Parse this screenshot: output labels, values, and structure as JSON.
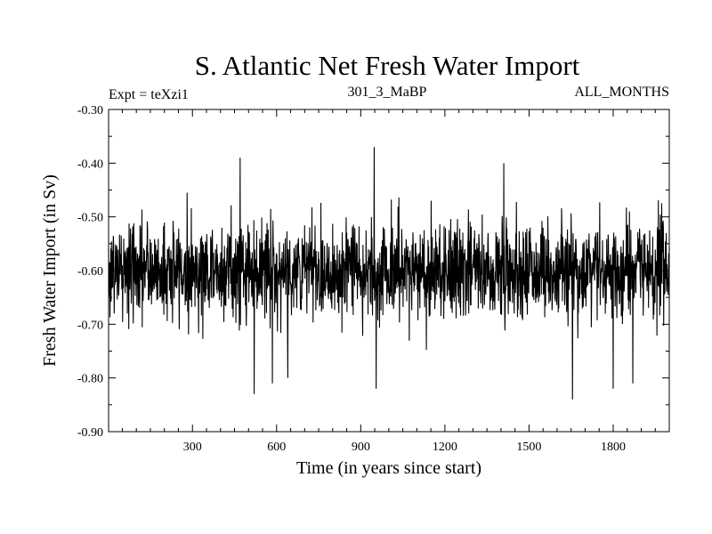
{
  "chart_data": {
    "type": "line",
    "title": "S. Atlantic Net Fresh Water Import",
    "subtitle_left": "Expt = teXzi1",
    "subtitle_center": "301_3_MaBP",
    "subtitle_right": "ALL_MONTHS",
    "xlabel": "Time (in years since start)",
    "ylabel": "Fresh Water Import (in Sv)",
    "xlim": [
      1,
      2000
    ],
    "ylim": [
      -0.9,
      -0.3
    ],
    "xticks": [
      300,
      600,
      900,
      1200,
      1500,
      1800
    ],
    "xtick_labels": [
      "300",
      "600",
      "900",
      "1200",
      "1500",
      "1800"
    ],
    "yticks": [
      -0.3,
      -0.4,
      -0.5,
      -0.6,
      -0.7,
      -0.8,
      -0.9
    ],
    "ytick_labels": [
      "-0.30",
      "-0.40",
      "-0.50",
      "-0.60",
      "-0.70",
      "-0.80",
      "-0.90"
    ],
    "series": [
      {
        "name": "Net Fresh Water Import",
        "color": "#000000",
        "n_points": 2000,
        "mean": -0.6,
        "std": 0.045,
        "min": -0.84,
        "max": -0.37,
        "seed": 20240611,
        "extremes": [
          {
            "x": 470,
            "y": -0.39
          },
          {
            "x": 520,
            "y": -0.83
          },
          {
            "x": 585,
            "y": -0.81
          },
          {
            "x": 640,
            "y": -0.8
          },
          {
            "x": 948,
            "y": -0.37
          },
          {
            "x": 955,
            "y": -0.82
          },
          {
            "x": 1655,
            "y": -0.84
          },
          {
            "x": 1410,
            "y": -0.4
          },
          {
            "x": 1800,
            "y": -0.82
          },
          {
            "x": 1870,
            "y": -0.81
          }
        ]
      }
    ]
  }
}
